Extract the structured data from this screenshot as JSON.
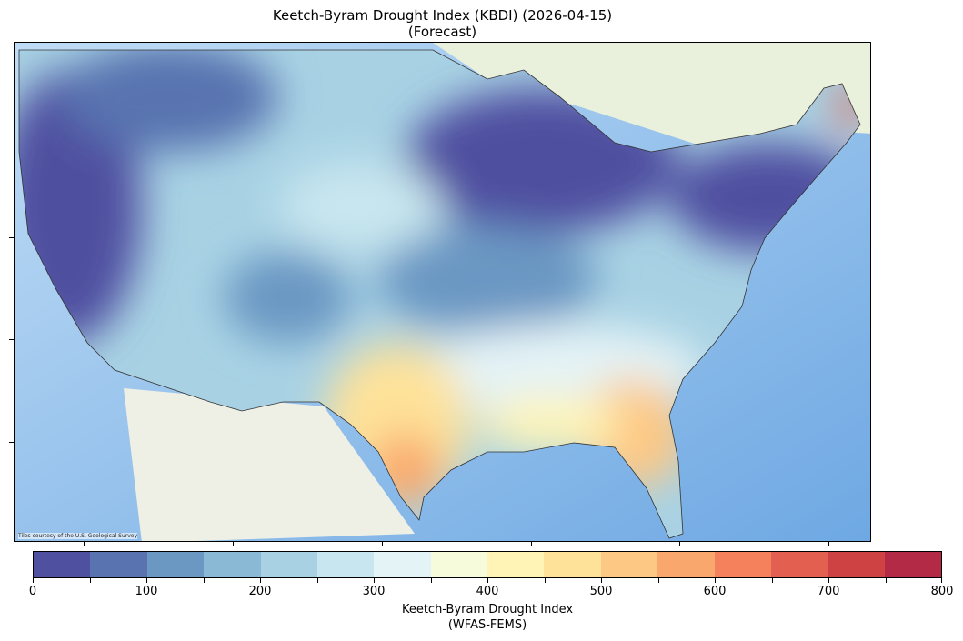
{
  "title_line1": "Keetch-Byram Drought Index (KBDI) (2026-04-15)",
  "title_line2": "(Forecast)",
  "attribution": "Tiles courtesy of the U.S. Geological Survey",
  "colorbar": {
    "label_line1": "Keetch-Byram Drought Index",
    "label_line2": "(WFAS-FEMS)",
    "tick_labels": [
      "0",
      "100",
      "200",
      "300",
      "400",
      "500",
      "600",
      "700",
      "800"
    ],
    "range": [
      0,
      800
    ],
    "step": 50,
    "colors": [
      "#5050a0",
      "#5873b0",
      "#6b97c3",
      "#8ab9d6",
      "#a8d2e4",
      "#c8e6ef",
      "#e4f3f6",
      "#f6fbdb",
      "#fff4b5",
      "#fee29a",
      "#fdc784",
      "#f9a76c",
      "#f4815b",
      "#e35f4f",
      "#cf4244",
      "#b22a45"
    ]
  }
}
